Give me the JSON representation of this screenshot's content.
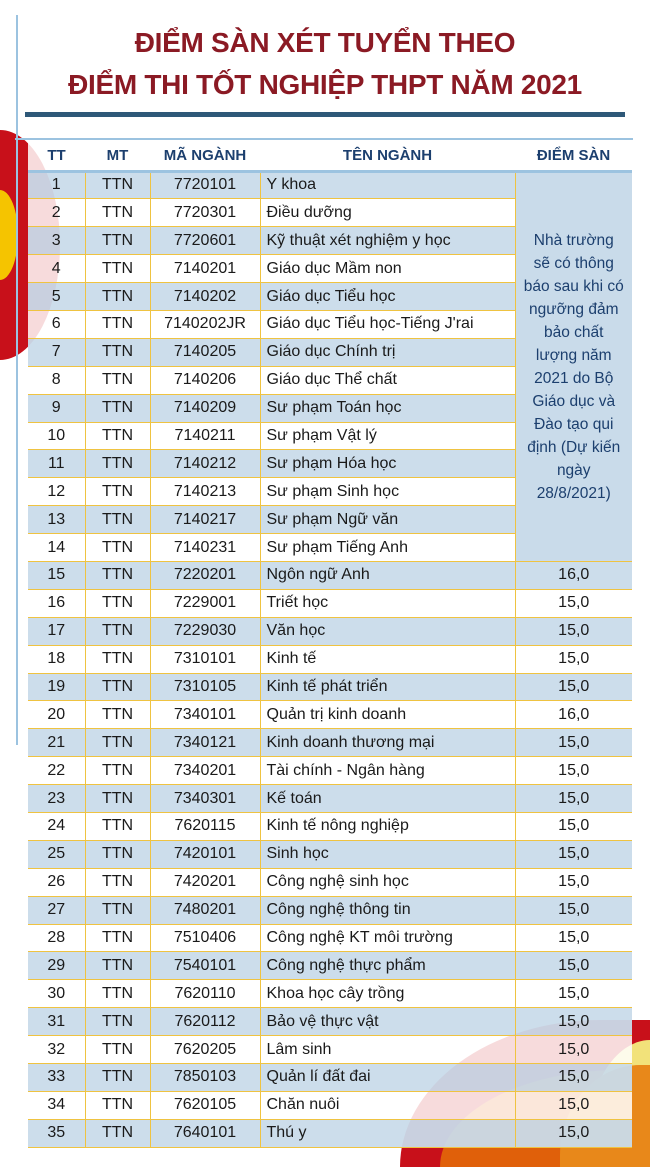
{
  "title_line1": "ĐIỂM SÀN XÉT TUYỂN THEO",
  "title_line2": "ĐIỂM THI TỐT NGHIỆP THPT NĂM 2021",
  "headers": [
    "TT",
    "MT",
    "MÃ NGÀNH",
    "TÊN NGÀNH",
    "ĐIỂM SÀN"
  ],
  "merged_note": "Nhà trường sẽ có thông báo sau khi có ngưỡng đảm bảo chất lượng năm 2021 do Bộ Giáo dục và Đào tạo qui định (Dự kiến ngày 28/8/2021)",
  "rows": [
    [
      "1",
      "TTN",
      "7720101",
      "Y khoa",
      ""
    ],
    [
      "2",
      "TTN",
      "7720301",
      "Điều dưỡng",
      ""
    ],
    [
      "3",
      "TTN",
      "7720601",
      "Kỹ thuật xét nghiệm y học",
      ""
    ],
    [
      "4",
      "TTN",
      "7140201",
      "Giáo dục Mầm non",
      ""
    ],
    [
      "5",
      "TTN",
      "7140202",
      "Giáo dục Tiểu học",
      ""
    ],
    [
      "6",
      "TTN",
      "7140202JR",
      "Giáo dục Tiểu học-Tiếng J'rai",
      ""
    ],
    [
      "7",
      "TTN",
      "7140205",
      "Giáo dục Chính trị",
      ""
    ],
    [
      "8",
      "TTN",
      "7140206",
      "Giáo dục Thể chất",
      ""
    ],
    [
      "9",
      "TTN",
      "7140209",
      "Sư phạm Toán học",
      ""
    ],
    [
      "10",
      "TTN",
      "7140211",
      "Sư phạm Vật lý",
      ""
    ],
    [
      "11",
      "TTN",
      "7140212",
      "Sư phạm Hóa học",
      ""
    ],
    [
      "12",
      "TTN",
      "7140213",
      "Sư phạm Sinh học",
      ""
    ],
    [
      "13",
      "TTN",
      "7140217",
      "Sư phạm Ngữ văn",
      ""
    ],
    [
      "14",
      "TTN",
      "7140231",
      "Sư phạm Tiếng Anh",
      ""
    ],
    [
      "15",
      "TTN",
      "7220201",
      "Ngôn ngữ Anh",
      "16,0"
    ],
    [
      "16",
      "TTN",
      "7229001",
      "Triết học",
      "15,0"
    ],
    [
      "17",
      "TTN",
      "7229030",
      "Văn học",
      "15,0"
    ],
    [
      "18",
      "TTN",
      "7310101",
      "Kinh tế",
      "15,0"
    ],
    [
      "19",
      "TTN",
      "7310105",
      "Kinh tế phát triển",
      "15,0"
    ],
    [
      "20",
      "TTN",
      "7340101",
      "Quản trị kinh doanh",
      "16,0"
    ],
    [
      "21",
      "TTN",
      "7340121",
      "Kinh doanh thương mại",
      "15,0"
    ],
    [
      "22",
      "TTN",
      "7340201",
      "Tài chính - Ngân hàng",
      "15,0"
    ],
    [
      "23",
      "TTN",
      "7340301",
      "Kế toán",
      "15,0"
    ],
    [
      "24",
      "TTN",
      "7620115",
      "Kinh tế nông nghiệp",
      "15,0"
    ],
    [
      "25",
      "TTN",
      "7420101",
      "Sinh học",
      "15,0"
    ],
    [
      "26",
      "TTN",
      "7420201",
      "Công nghệ sinh học",
      "15,0"
    ],
    [
      "27",
      "TTN",
      "7480201",
      "Công nghệ thông tin",
      "15,0"
    ],
    [
      "28",
      "TTN",
      "7510406",
      "Công nghệ KT môi trường",
      "15,0"
    ],
    [
      "29",
      "TTN",
      "7540101",
      "Công nghệ thực phẩm",
      "15,0"
    ],
    [
      "30",
      "TTN",
      "7620110",
      "Khoa học cây trồng",
      "15,0"
    ],
    [
      "31",
      "TTN",
      "7620112",
      "Bảo vệ thực vật",
      "15,0"
    ],
    [
      "32",
      "TTN",
      "7620205",
      "Lâm sinh",
      "15,0"
    ],
    [
      "33",
      "TTN",
      "7850103",
      "Quản lí đất đai",
      "15,0"
    ],
    [
      "34",
      "TTN",
      "7620105",
      "Chăn nuôi",
      "15,0"
    ],
    [
      "35",
      "TTN",
      "7640101",
      "Thú y",
      "15,0"
    ]
  ]
}
